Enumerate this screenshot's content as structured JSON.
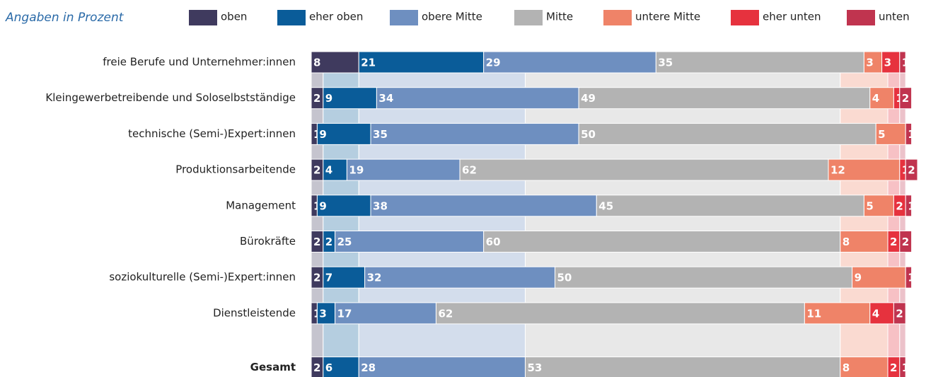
{
  "chart_data": {
    "type": "stacked_bar_horizontal",
    "title": "Angaben in Prozent",
    "categories": [
      "freie Berufe und Unternehmer:innen",
      "Kleingewerbetreibende und Soloselbstständige",
      "technische (Semi-)Expert:innen",
      "Produktionsarbeitende",
      "Management",
      "Bürokräfte",
      "soziokulturelle (Semi-)Expert:innen",
      "Dienstleistende",
      "Gesamt"
    ],
    "series": [
      {
        "name": "oben",
        "color": "#3f3a5e",
        "values": [
          8,
          2,
          1,
          2,
          1,
          2,
          2,
          1,
          2
        ]
      },
      {
        "name": "eher oben",
        "color": "#0a5c99",
        "values": [
          21,
          9,
          9,
          4,
          9,
          2,
          7,
          3,
          6
        ]
      },
      {
        "name": "obere Mitte",
        "color": "#6e8fc0",
        "values": [
          29,
          34,
          35,
          19,
          38,
          25,
          32,
          17,
          28
        ]
      },
      {
        "name": "Mitte",
        "color": "#b3b3b3",
        "values": [
          35,
          49,
          50,
          62,
          45,
          60,
          50,
          62,
          53
        ]
      },
      {
        "name": "untere Mitte",
        "color": "#ef8368",
        "values": [
          3,
          4,
          5,
          12,
          5,
          8,
          9,
          11,
          8
        ]
      },
      {
        "name": "eher unten",
        "color": "#e6323e",
        "values": [
          3,
          1,
          null,
          1,
          2,
          2,
          null,
          4,
          2
        ]
      },
      {
        "name": "unten",
        "color": "#c0344f",
        "values": [
          1,
          2,
          1,
          2,
          1,
          2,
          1,
          2,
          1
        ]
      }
    ],
    "xlim": [
      0,
      102
    ]
  }
}
